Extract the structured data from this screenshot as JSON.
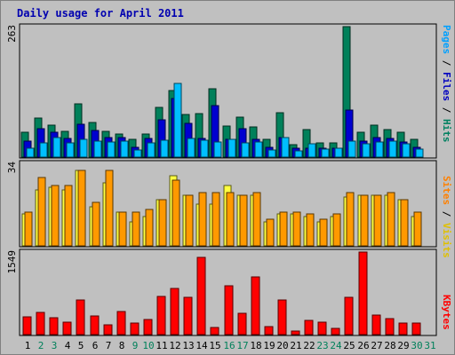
{
  "chart_data": {
    "type": "bar",
    "title": "Daily usage for April 2011",
    "days": [
      "1",
      "2",
      "3",
      "4",
      "5",
      "6",
      "7",
      "8",
      "9",
      "10",
      "11",
      "12",
      "13",
      "14",
      "15",
      "16",
      "17",
      "18",
      "19",
      "20",
      "21",
      "22",
      "23",
      "24",
      "25",
      "26",
      "27",
      "28",
      "29",
      "30",
      "31"
    ],
    "weekend_days": [
      "2",
      "3",
      "9",
      "10",
      "16",
      "17",
      "23",
      "24",
      "30",
      "31"
    ],
    "panels": [
      {
        "name": "hits-files-pages",
        "max_label": "263",
        "ymax": 263,
        "right_label_parts": [
          {
            "text": "Pages",
            "color": "#00a0ff"
          },
          {
            "text": " / ",
            "color": "#000000"
          },
          {
            "text": "Files",
            "color": "#0000c0"
          },
          {
            "text": " / ",
            "color": "#000000"
          },
          {
            "text": "Hits",
            "color": "#008060"
          }
        ],
        "series": [
          {
            "name": "Hits",
            "color": "#00805a",
            "values": [
              50,
              79,
              65,
              52,
              108,
              70,
              52,
              46,
              35,
              46,
              100,
              135,
              85,
              88,
              138,
              62,
              80,
              60,
              36,
              90,
              25,
              55,
              28,
              28,
              263,
              50,
              64,
              55,
              50,
              35,
              0
            ]
          },
          {
            "name": "Files",
            "color": "#0000d0",
            "values": [
              32,
              57,
              50,
              38,
              67,
              54,
              40,
              40,
              20,
              38,
              76,
              118,
              68,
              37,
              104,
              36,
              58,
              36,
              20,
              40,
              18,
              18,
              18,
              18,
              95,
              32,
              40,
              38,
              30,
              20,
              0
            ]
          },
          {
            "name": "Pages",
            "color": "#00bfff",
            "values": [
              18,
              28,
              40,
              28,
              36,
              32,
              30,
              32,
              15,
              28,
              34,
              148,
              38,
              34,
              30,
              36,
              28,
              30,
              14,
              40,
              12,
              26,
              16,
              18,
              32,
              26,
              30,
              32,
              26,
              16,
              0
            ]
          }
        ]
      },
      {
        "name": "visits-sites",
        "max_label": "34",
        "ymax": 34,
        "right_label_parts": [
          {
            "text": "Sites",
            "color": "#ff8000"
          },
          {
            "text": " / ",
            "color": "#000000"
          },
          {
            "text": "Visits",
            "color": "#e0c000"
          }
        ],
        "series": [
          {
            "name": "Visits",
            "color": "#ffff40",
            "values": [
              13,
              23,
              24,
              23,
              31,
              16,
              26,
              14,
              10,
              12,
              19,
              29,
              21,
              17,
              17,
              25,
              21,
              21,
              10,
              13,
              13,
              12,
              10,
              12,
              20,
              21,
              21,
              21,
              19,
              12,
              0
            ]
          },
          {
            "name": "Sites",
            "color": "#ff9900",
            "values": [
              14,
              28,
              25,
              25,
              31,
              18,
              31,
              14,
              14,
              15,
              19,
              27,
              21,
              22,
              22,
              22,
              21,
              22,
              11,
              14,
              14,
              13,
              11,
              13,
              22,
              21,
              21,
              22,
              19,
              14,
              0
            ]
          }
        ]
      },
      {
        "name": "kbytes",
        "max_label": "1549",
        "ymax": 1549,
        "right_label_parts": [
          {
            "text": "KBytes",
            "color": "#ff0000"
          }
        ],
        "series": [
          {
            "name": "KBytes",
            "color": "#ff0000",
            "values": [
              340,
              420,
              315,
              240,
              650,
              350,
              190,
              440,
              210,
              290,
              720,
              860,
              700,
              1450,
              140,
              920,
              400,
              1080,
              150,
              650,
              70,
              260,
              230,
              120,
              700,
              1549,
              360,
              300,
              220,
              210,
              0
            ]
          }
        ]
      }
    ]
  }
}
